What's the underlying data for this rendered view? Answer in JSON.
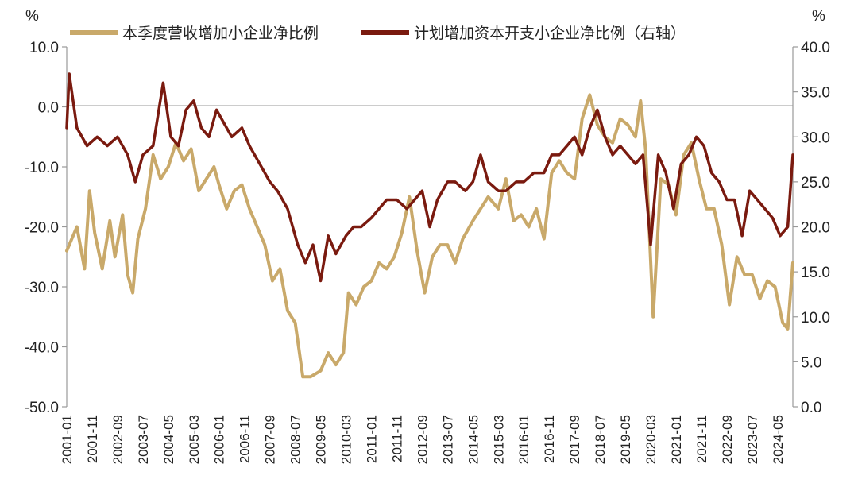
{
  "chart_data": {
    "type": "line",
    "legend_position": "top",
    "grid": false,
    "x_ticks": [
      "2001-01",
      "2001-11",
      "2002-09",
      "2003-07",
      "2004-05",
      "2005-03",
      "2006-01",
      "2006-11",
      "2007-09",
      "2008-07",
      "2009-05",
      "2010-03",
      "2011-01",
      "2011-11",
      "2012-09",
      "2013-07",
      "2014-05",
      "2015-03",
      "2016-01",
      "2016-11",
      "2017-09",
      "2018-07",
      "2019-05",
      "2020-03",
      "2021-01",
      "2021-11",
      "2022-09",
      "2023-07",
      "2024-05"
    ],
    "y_left": {
      "unit": "%",
      "ticks": [
        "10.0",
        "0.0",
        "-10.0",
        "-20.0",
        "-30.0",
        "-40.0",
        "-50.0"
      ],
      "range": [
        -50,
        10
      ]
    },
    "y_right": {
      "unit": "%",
      "ticks": [
        "40.0",
        "35.0",
        "30.0",
        "25.0",
        "20.0",
        "15.0",
        "10.0",
        "5.0",
        "0.0"
      ],
      "range": [
        0,
        40
      ]
    },
    "series": [
      {
        "name": "本季度营收增加小企业净比例",
        "axis": "left",
        "color": "#C9A96A",
        "points": [
          [
            "2001-01",
            -24
          ],
          [
            "2001-05",
            -20
          ],
          [
            "2001-08",
            -27
          ],
          [
            "2001-10",
            -14
          ],
          [
            "2001-12",
            -21
          ],
          [
            "2002-03",
            -27
          ],
          [
            "2002-06",
            -19
          ],
          [
            "2002-08",
            -25
          ],
          [
            "2002-11",
            -18
          ],
          [
            "2003-01",
            -28
          ],
          [
            "2003-03",
            -31
          ],
          [
            "2003-05",
            -22
          ],
          [
            "2003-08",
            -17
          ],
          [
            "2003-11",
            -8
          ],
          [
            "2004-02",
            -12
          ],
          [
            "2004-05",
            -10
          ],
          [
            "2004-08",
            -6
          ],
          [
            "2004-11",
            -9
          ],
          [
            "2005-02",
            -7
          ],
          [
            "2005-05",
            -14
          ],
          [
            "2005-08",
            -12
          ],
          [
            "2005-11",
            -10
          ],
          [
            "2006-01",
            -13
          ],
          [
            "2006-04",
            -17
          ],
          [
            "2006-07",
            -14
          ],
          [
            "2006-10",
            -13
          ],
          [
            "2007-01",
            -17
          ],
          [
            "2007-04",
            -20
          ],
          [
            "2007-07",
            -23
          ],
          [
            "2007-10",
            -29
          ],
          [
            "2008-01",
            -27
          ],
          [
            "2008-04",
            -34
          ],
          [
            "2008-07",
            -36
          ],
          [
            "2008-10",
            -45
          ],
          [
            "2009-01",
            -45
          ],
          [
            "2009-05",
            -44
          ],
          [
            "2009-08",
            -41
          ],
          [
            "2009-11",
            -43
          ],
          [
            "2010-02",
            -41
          ],
          [
            "2010-04",
            -31
          ],
          [
            "2010-07",
            -33
          ],
          [
            "2010-10",
            -30
          ],
          [
            "2011-01",
            -29
          ],
          [
            "2011-04",
            -26
          ],
          [
            "2011-07",
            -27
          ],
          [
            "2011-10",
            -25
          ],
          [
            "2012-01",
            -21
          ],
          [
            "2012-04",
            -15
          ],
          [
            "2012-07",
            -24
          ],
          [
            "2012-10",
            -31
          ],
          [
            "2013-01",
            -25
          ],
          [
            "2013-04",
            -23
          ],
          [
            "2013-07",
            -23
          ],
          [
            "2013-10",
            -26
          ],
          [
            "2014-01",
            -22
          ],
          [
            "2014-05",
            -19
          ],
          [
            "2014-08",
            -17
          ],
          [
            "2014-11",
            -15
          ],
          [
            "2015-03",
            -17
          ],
          [
            "2015-06",
            -12
          ],
          [
            "2015-09",
            -19
          ],
          [
            "2015-12",
            -18
          ],
          [
            "2016-03",
            -20
          ],
          [
            "2016-06",
            -17
          ],
          [
            "2016-09",
            -22
          ],
          [
            "2016-12",
            -11
          ],
          [
            "2017-03",
            -9
          ],
          [
            "2017-06",
            -11
          ],
          [
            "2017-09",
            -12
          ],
          [
            "2017-12",
            -2
          ],
          [
            "2018-03",
            2
          ],
          [
            "2018-06",
            -3
          ],
          [
            "2018-09",
            -5
          ],
          [
            "2018-12",
            -6
          ],
          [
            "2019-03",
            -2
          ],
          [
            "2019-06",
            -3
          ],
          [
            "2019-09",
            -5
          ],
          [
            "2019-11",
            1
          ],
          [
            "2020-01",
            -7
          ],
          [
            "2020-04",
            -35
          ],
          [
            "2020-07",
            -12
          ],
          [
            "2020-10",
            -13
          ],
          [
            "2021-01",
            -18
          ],
          [
            "2021-04",
            -8
          ],
          [
            "2021-07",
            -6
          ],
          [
            "2021-10",
            -12
          ],
          [
            "2022-01",
            -17
          ],
          [
            "2022-04",
            -17
          ],
          [
            "2022-07",
            -23
          ],
          [
            "2022-10",
            -33
          ],
          [
            "2023-01",
            -25
          ],
          [
            "2023-04",
            -28
          ],
          [
            "2023-07",
            -28
          ],
          [
            "2023-10",
            -32
          ],
          [
            "2024-01",
            -29
          ],
          [
            "2024-04",
            -30
          ],
          [
            "2024-07",
            -36
          ],
          [
            "2024-09",
            -37
          ],
          [
            "2024-11",
            -26
          ]
        ]
      },
      {
        "name": "计划增加资本开支小企业净比例（右轴）",
        "axis": "right",
        "color": "#7A1A0F",
        "points": [
          [
            "2001-01",
            31
          ],
          [
            "2001-02",
            37
          ],
          [
            "2001-05",
            31
          ],
          [
            "2001-09",
            29
          ],
          [
            "2002-01",
            30
          ],
          [
            "2002-05",
            29
          ],
          [
            "2002-09",
            30
          ],
          [
            "2003-01",
            28
          ],
          [
            "2003-04",
            25
          ],
          [
            "2003-07",
            28
          ],
          [
            "2003-11",
            29
          ],
          [
            "2004-03",
            36
          ],
          [
            "2004-06",
            30
          ],
          [
            "2004-09",
            29
          ],
          [
            "2004-12",
            33
          ],
          [
            "2005-03",
            34
          ],
          [
            "2005-06",
            31
          ],
          [
            "2005-09",
            30
          ],
          [
            "2005-12",
            33
          ],
          [
            "2006-02",
            32
          ],
          [
            "2006-06",
            30
          ],
          [
            "2006-10",
            31
          ],
          [
            "2007-01",
            29
          ],
          [
            "2007-05",
            27
          ],
          [
            "2007-09",
            25
          ],
          [
            "2007-12",
            24
          ],
          [
            "2008-04",
            22
          ],
          [
            "2008-08",
            18
          ],
          [
            "2008-11",
            16
          ],
          [
            "2009-02",
            18
          ],
          [
            "2009-05",
            14
          ],
          [
            "2009-08",
            19
          ],
          [
            "2009-11",
            17
          ],
          [
            "2010-03",
            19
          ],
          [
            "2010-06",
            20
          ],
          [
            "2010-09",
            20
          ],
          [
            "2011-01",
            21
          ],
          [
            "2011-04",
            22
          ],
          [
            "2011-07",
            23
          ],
          [
            "2011-11",
            23
          ],
          [
            "2012-03",
            22
          ],
          [
            "2012-06",
            23
          ],
          [
            "2012-09",
            24
          ],
          [
            "2012-12",
            20
          ],
          [
            "2013-03",
            23
          ],
          [
            "2013-07",
            25
          ],
          [
            "2013-10",
            25
          ],
          [
            "2014-02",
            24
          ],
          [
            "2014-05",
            25
          ],
          [
            "2014-08",
            28
          ],
          [
            "2014-11",
            25
          ],
          [
            "2015-03",
            24
          ],
          [
            "2015-06",
            24
          ],
          [
            "2015-10",
            25
          ],
          [
            "2016-01",
            25
          ],
          [
            "2016-05",
            26
          ],
          [
            "2016-09",
            26
          ],
          [
            "2016-12",
            28
          ],
          [
            "2017-03",
            28
          ],
          [
            "2017-06",
            29
          ],
          [
            "2017-09",
            30
          ],
          [
            "2017-12",
            28
          ],
          [
            "2018-03",
            31
          ],
          [
            "2018-06",
            33
          ],
          [
            "2018-09",
            30
          ],
          [
            "2018-12",
            28
          ],
          [
            "2019-03",
            29
          ],
          [
            "2019-06",
            28
          ],
          [
            "2019-09",
            27
          ],
          [
            "2019-12",
            28
          ],
          [
            "2020-03",
            18
          ],
          [
            "2020-06",
            28
          ],
          [
            "2020-09",
            26
          ],
          [
            "2020-12",
            22
          ],
          [
            "2021-03",
            27
          ],
          [
            "2021-06",
            28
          ],
          [
            "2021-09",
            30
          ],
          [
            "2021-12",
            29
          ],
          [
            "2022-03",
            26
          ],
          [
            "2022-06",
            25
          ],
          [
            "2022-09",
            23
          ],
          [
            "2022-12",
            23
          ],
          [
            "2023-03",
            19
          ],
          [
            "2023-06",
            24
          ],
          [
            "2023-09",
            23
          ],
          [
            "2023-12",
            22
          ],
          [
            "2024-03",
            21
          ],
          [
            "2024-06",
            19
          ],
          [
            "2024-09",
            20
          ],
          [
            "2024-11",
            28
          ]
        ]
      }
    ]
  }
}
